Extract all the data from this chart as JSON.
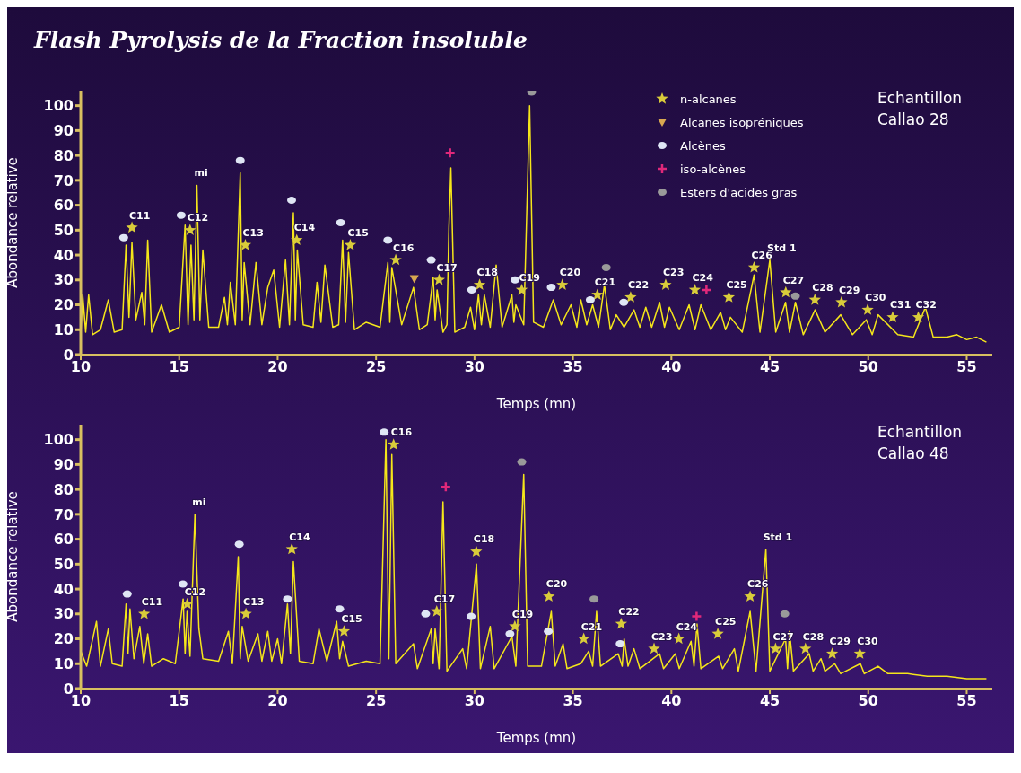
{
  "chart_data": [
    {
      "type": "line",
      "title": "Flash Pyrolysis de la Fraction insoluble",
      "xlabel": "Temps (mn)",
      "ylabel": "Abondance relative",
      "xlim": [
        10,
        56.3
      ],
      "xticks": [
        10,
        15,
        20,
        25,
        30,
        35,
        40,
        45,
        50,
        55
      ],
      "ylim": [
        0,
        106
      ],
      "yticks": [
        0,
        10,
        20,
        30,
        40,
        50,
        60,
        70,
        80,
        90,
        100
      ],
      "grid": false,
      "legend": "top",
      "annotations": [
        "Echantillon Callao 28",
        {
          "text": "C11",
          "x": 12.6,
          "y": 51
        },
        {
          "text": "C12",
          "x": 15.55,
          "y": 50
        },
        {
          "text": "mi",
          "x": 15.9,
          "y": 68
        },
        {
          "text": "C13",
          "x": 18.36,
          "y": 44
        },
        {
          "text": "C14",
          "x": 20.97,
          "y": 46
        },
        {
          "text": "C15",
          "x": 23.69,
          "y": 44
        },
        {
          "text": "C16",
          "x": 26.0,
          "y": 38
        },
        {
          "text": "C17",
          "x": 28.2,
          "y": 30
        },
        {
          "text": "C18",
          "x": 30.26,
          "y": 28
        },
        {
          "text": "C19",
          "x": 32.4,
          "y": 26
        },
        {
          "text": "C20",
          "x": 34.46,
          "y": 28
        },
        {
          "text": "C21",
          "x": 36.24,
          "y": 24
        },
        {
          "text": "C22",
          "x": 37.93,
          "y": 23
        },
        {
          "text": "C23",
          "x": 39.71,
          "y": 28
        },
        {
          "text": "C24",
          "x": 41.19,
          "y": 26
        },
        {
          "text": "C25",
          "x": 42.92,
          "y": 23
        },
        {
          "text": "C26",
          "x": 44.2,
          "y": 35
        },
        {
          "text": "Std 1",
          "x": 45.0,
          "y": 38
        },
        {
          "text": "C27",
          "x": 45.81,
          "y": 25
        },
        {
          "text": "C28",
          "x": 47.29,
          "y": 22
        },
        {
          "text": "C29",
          "x": 48.64,
          "y": 21
        },
        {
          "text": "C30",
          "x": 49.97,
          "y": 18
        },
        {
          "text": "C31",
          "x": 51.24,
          "y": 15
        },
        {
          "text": "C32",
          "x": 52.54,
          "y": 15
        }
      ],
      "series": [
        {
          "color": "#f5e61a",
          "x": [
            10,
            10.1,
            10.25,
            10.4,
            10.6,
            11.0,
            11.4,
            11.7,
            12.1,
            12.3,
            12.45,
            12.6,
            12.8,
            13.1,
            13.25,
            13.4,
            13.6,
            14.1,
            14.5,
            15.0,
            15.3,
            15.45,
            15.6,
            15.75,
            15.9,
            16.05,
            16.2,
            16.5,
            17.0,
            17.3,
            17.45,
            17.6,
            17.85,
            18.1,
            18.2,
            18.3,
            18.6,
            18.9,
            19.2,
            19.5,
            19.8,
            20.1,
            20.4,
            20.6,
            20.8,
            20.9,
            21.0,
            21.3,
            21.8,
            22.0,
            22.2,
            22.4,
            22.8,
            23.1,
            23.3,
            23.45,
            23.6,
            23.9,
            24.5,
            25.2,
            25.6,
            25.7,
            25.8,
            26.3,
            26.9,
            27.2,
            27.6,
            27.9,
            28.0,
            28.1,
            28.4,
            28.6,
            28.7,
            28.8,
            29.0,
            29.5,
            29.8,
            30.0,
            30.2,
            30.35,
            30.5,
            30.8,
            31.1,
            31.4,
            31.9,
            32.0,
            32.1,
            32.5,
            32.8,
            33.0,
            33.5,
            34.0,
            34.4,
            34.9,
            35.2,
            35.4,
            35.7,
            36.0,
            36.3,
            36.6,
            36.9,
            37.2,
            37.6,
            38.1,
            38.4,
            38.7,
            39.0,
            39.4,
            39.65,
            39.9,
            40.4,
            40.9,
            41.2,
            41.5,
            42.0,
            42.5,
            42.75,
            43.0,
            43.6,
            44.2,
            44.5,
            45.0,
            45.3,
            45.8,
            46.0,
            46.3,
            46.7,
            47.3,
            47.8,
            48.6,
            49.2,
            49.9,
            50.2,
            50.5,
            51.5,
            52.3,
            52.9,
            53.3,
            54.0,
            54.5,
            55.0,
            55.5,
            56.0
          ],
          "values": [
            8,
            24,
            9,
            24,
            8,
            10,
            22,
            9,
            10,
            44,
            15,
            45,
            14,
            25,
            12,
            46,
            9,
            20,
            9,
            11,
            52,
            12,
            44,
            14,
            68,
            14,
            42,
            11,
            11,
            23,
            12,
            29,
            12,
            73,
            14,
            37,
            12,
            37,
            12,
            27,
            34,
            11,
            38,
            12,
            57,
            14,
            42,
            12,
            11,
            29,
            13,
            36,
            11,
            12,
            46,
            13,
            41,
            10,
            13,
            11,
            37,
            13,
            35,
            12,
            27,
            10,
            12,
            31,
            14,
            26,
            9,
            12,
            51,
            75,
            9,
            11,
            19,
            10,
            24,
            12,
            24,
            11,
            36,
            11,
            24,
            13,
            20,
            12,
            100,
            13,
            11,
            22,
            12,
            20,
            11,
            22,
            12,
            20,
            11,
            28,
            10,
            16,
            11,
            18,
            11,
            19,
            11,
            21,
            11,
            19,
            10,
            20,
            10,
            20,
            10,
            17,
            10,
            15,
            9,
            32,
            9,
            38,
            9,
            21,
            9,
            21,
            8,
            18,
            9,
            16,
            8,
            14,
            8,
            16,
            8,
            7,
            19,
            7,
            7,
            8,
            6,
            7,
            5
          ]
        },
        {
          "type": "scatter",
          "name": "n-alcanes",
          "color": "#d9cc3a",
          "marker": "star",
          "x": [
            12.6,
            15.55,
            18.36,
            20.97,
            23.69,
            26.0,
            28.2,
            30.26,
            32.4,
            34.46,
            36.24,
            37.93,
            39.71,
            41.19,
            42.92,
            44.2,
            45.81,
            47.29,
            48.64,
            49.97,
            51.24,
            52.54
          ],
          "values": [
            51,
            50,
            44,
            46,
            44,
            38,
            30,
            28,
            26,
            28,
            24,
            23,
            28,
            26,
            23,
            35,
            25,
            22,
            21,
            18,
            15,
            15
          ]
        },
        {
          "type": "scatter",
          "name": "Alcanes isopréniques",
          "color": "#d8a850",
          "marker": "triangle",
          "x": [
            26.94
          ],
          "values": [
            30.5
          ]
        },
        {
          "type": "scatter",
          "name": "Alcènes",
          "color": "#dfe6f5",
          "marker": "circle",
          "x": [
            12.18,
            15.1,
            18.1,
            20.71,
            23.2,
            25.6,
            27.8,
            29.86,
            32.06,
            33.9,
            35.88,
            37.58
          ],
          "values": [
            47,
            56,
            78,
            62,
            53,
            46,
            38,
            26,
            30,
            27,
            22,
            21
          ]
        },
        {
          "type": "scatter",
          "name": "iso-alcènes",
          "color": "#e0287a",
          "marker": "cross",
          "x": [
            28.76,
            41.78
          ],
          "values": [
            81,
            26
          ]
        },
        {
          "type": "scatter",
          "name": "Esters d'acides gras",
          "color": "#9a9a9a",
          "marker": "circle",
          "x": [
            32.9,
            36.69,
            46.3
          ],
          "values": [
            105.5,
            35,
            23.5
          ]
        }
      ]
    },
    {
      "type": "line",
      "xlabel": "Temps (mn)",
      "ylabel": "Abondance relative",
      "xlim": [
        10,
        56.3
      ],
      "xticks": [
        10,
        15,
        20,
        25,
        30,
        35,
        40,
        45,
        50,
        55
      ],
      "ylim": [
        0,
        106
      ],
      "yticks": [
        0,
        10,
        20,
        30,
        40,
        50,
        60,
        70,
        80,
        90,
        100
      ],
      "grid": false,
      "annotations": [
        "Echantillon Callao 48",
        {
          "text": "C11",
          "x": 13.22,
          "y": 30
        },
        {
          "text": "C12",
          "x": 15.41,
          "y": 34
        },
        {
          "text": "mi",
          "x": 15.8,
          "y": 70
        },
        {
          "text": "C13",
          "x": 18.39,
          "y": 30
        },
        {
          "text": "C14",
          "x": 20.72,
          "y": 56
        },
        {
          "text": "C15",
          "x": 23.37,
          "y": 23
        },
        {
          "text": "C16",
          "x": 25.89,
          "y": 98
        },
        {
          "text": "C17",
          "x": 28.08,
          "y": 31
        },
        {
          "text": "C18",
          "x": 30.09,
          "y": 55
        },
        {
          "text": "C19",
          "x": 32.05,
          "y": 25
        },
        {
          "text": "C20",
          "x": 33.78,
          "y": 37
        },
        {
          "text": "C21",
          "x": 35.55,
          "y": 20
        },
        {
          "text": "C22",
          "x": 37.45,
          "y": 26
        },
        {
          "text": "C23",
          "x": 39.12,
          "y": 16
        },
        {
          "text": "C24",
          "x": 40.38,
          "y": 20
        },
        {
          "text": "C25",
          "x": 42.36,
          "y": 22
        },
        {
          "text": "C26",
          "x": 44.0,
          "y": 37
        },
        {
          "text": "Std 1",
          "x": 44.8,
          "y": 56
        },
        {
          "text": "C27",
          "x": 45.29,
          "y": 16
        },
        {
          "text": "C28",
          "x": 46.81,
          "y": 16
        },
        {
          "text": "C29",
          "x": 48.17,
          "y": 14
        },
        {
          "text": "C30",
          "x": 49.57,
          "y": 14
        }
      ],
      "series": [
        {
          "color": "#f5e61a",
          "x": [
            10,
            10.3,
            10.8,
            11.0,
            11.4,
            11.6,
            12.1,
            12.3,
            12.4,
            12.5,
            12.7,
            13.0,
            13.2,
            13.4,
            13.6,
            14.2,
            14.8,
            15.2,
            15.3,
            15.4,
            15.55,
            15.8,
            16.0,
            16.2,
            17.0,
            17.5,
            17.7,
            18.0,
            18.1,
            18.2,
            18.5,
            19.0,
            19.2,
            19.5,
            19.7,
            20.0,
            20.2,
            20.5,
            20.65,
            20.8,
            21.1,
            21.8,
            22.1,
            22.5,
            23.0,
            23.15,
            23.3,
            23.6,
            24.5,
            25.2,
            25.5,
            25.65,
            25.8,
            26.0,
            26.9,
            27.1,
            27.8,
            27.9,
            28.0,
            28.2,
            28.4,
            28.6,
            29.4,
            29.6,
            30.1,
            30.3,
            30.8,
            31.0,
            31.9,
            32.1,
            32.5,
            32.7,
            33.4,
            33.9,
            34.1,
            34.5,
            34.7,
            35.4,
            35.8,
            36.0,
            36.2,
            36.4,
            37.3,
            37.5,
            37.6,
            37.8,
            38.1,
            38.4,
            39.4,
            39.6,
            40.2,
            40.4,
            41.0,
            41.15,
            41.3,
            41.5,
            42.4,
            42.6,
            43.2,
            43.4,
            44.0,
            44.3,
            44.8,
            45.0,
            45.8,
            45.9,
            46.0,
            46.2,
            47.0,
            47.2,
            47.6,
            47.8,
            48.3,
            48.6,
            49.6,
            49.8,
            50.5,
            51.0,
            52.0,
            53.0,
            54.0,
            55.0,
            56.0
          ],
          "values": [
            15,
            9,
            27,
            9,
            24,
            10,
            9,
            34,
            14,
            32,
            12,
            25,
            10,
            22,
            9,
            12,
            10,
            36,
            14,
            31,
            13,
            70,
            24,
            12,
            11,
            23,
            10,
            53,
            12,
            25,
            11,
            22,
            11,
            23,
            11,
            20,
            10,
            34,
            14,
            51,
            11,
            10,
            24,
            11,
            27,
            12,
            19,
            9,
            11,
            10,
            100,
            12,
            94,
            10,
            18,
            8,
            24,
            10,
            24,
            8,
            75,
            7,
            16,
            8,
            50,
            8,
            25,
            8,
            21,
            9,
            86,
            9,
            9,
            31,
            9,
            18,
            8,
            10,
            15,
            9,
            31,
            9,
            14,
            9,
            20,
            9,
            16,
            8,
            14,
            8,
            14,
            8,
            19,
            9,
            26,
            8,
            13,
            8,
            16,
            7,
            31,
            7,
            56,
            7,
            20,
            8,
            23,
            7,
            14,
            7,
            12,
            7,
            10,
            6,
            10,
            6,
            9,
            6,
            6,
            5,
            5,
            4,
            4
          ]
        },
        {
          "type": "scatter",
          "color": "#d9cc3a",
          "marker": "star",
          "x": [
            13.22,
            15.41,
            18.39,
            20.72,
            23.37,
            25.89,
            28.08,
            30.09,
            32.05,
            33.78,
            35.55,
            37.45,
            39.12,
            40.38,
            42.36,
            44.0,
            45.29,
            46.81,
            48.17,
            49.57
          ],
          "values": [
            30,
            34,
            30,
            56,
            23,
            98,
            31,
            55,
            25,
            37,
            20,
            26,
            16,
            20,
            22,
            37,
            16,
            16,
            14,
            14
          ]
        },
        {
          "type": "scatter",
          "color": "#dfe6f5",
          "marker": "circle",
          "x": [
            12.36,
            15.19,
            18.05,
            20.5,
            23.15,
            25.41,
            27.52,
            29.83,
            31.8,
            33.75,
            37.4
          ],
          "values": [
            38,
            42,
            58,
            36,
            32,
            103,
            30,
            29,
            22,
            23,
            18
          ]
        },
        {
          "type": "scatter",
          "color": "#e0287a",
          "marker": "cross",
          "x": [
            28.54,
            41.28
          ],
          "values": [
            81,
            29
          ]
        },
        {
          "type": "scatter",
          "color": "#9a9a9a",
          "marker": "circle",
          "x": [
            32.4,
            36.07,
            45.76
          ],
          "values": [
            91,
            36,
            30
          ]
        }
      ]
    }
  ]
}
